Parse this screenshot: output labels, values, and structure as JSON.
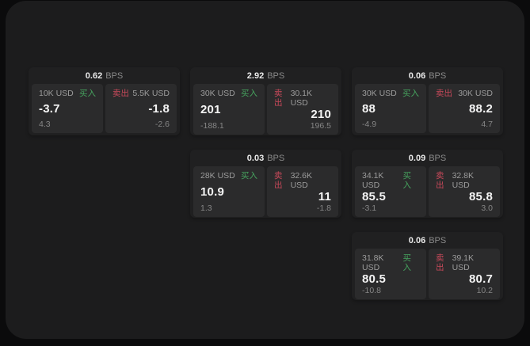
{
  "labels": {
    "buy": "买入",
    "sell": "卖出",
    "bps_unit": "BPS"
  },
  "colors": {
    "page_bg": "#0b0b0c",
    "surface_bg": "#1c1c1d",
    "card_bg": "#202021",
    "tile_bg": "#2b2b2c",
    "buy_green": "#46a35e",
    "sell_red": "#c8495a",
    "value_text": "#f4f4f4",
    "muted_text": "#9c9c9c"
  },
  "cards": [
    {
      "row": 1,
      "col": 1,
      "bps": "0.62",
      "buy": {
        "notional": "10K USD",
        "value": "-3.7",
        "sub": "4.3"
      },
      "sell": {
        "notional": "5.5K USD",
        "value": "-1.8",
        "sub": "-2.6"
      }
    },
    {
      "row": 1,
      "col": 2,
      "bps": "2.92",
      "buy": {
        "notional": "30K USD",
        "value": "201",
        "sub": "-188.1"
      },
      "sell": {
        "notional": "30.1K USD",
        "value": "210",
        "sub": "196.5"
      }
    },
    {
      "row": 1,
      "col": 3,
      "bps": "0.06",
      "buy": {
        "notional": "30K USD",
        "value": "88",
        "sub": "-4.9"
      },
      "sell": {
        "notional": "30K USD",
        "value": "88.2",
        "sub": "4.7"
      }
    },
    {
      "row": 2,
      "col": 2,
      "bps": "0.03",
      "buy": {
        "notional": "28K USD",
        "value": "10.9",
        "sub": "1.3"
      },
      "sell": {
        "notional": "32.6K USD",
        "value": "11",
        "sub": "-1.8"
      }
    },
    {
      "row": 2,
      "col": 3,
      "bps": "0.09",
      "buy": {
        "notional": "34.1K USD",
        "value": "85.5",
        "sub": "-3.1"
      },
      "sell": {
        "notional": "32.8K USD",
        "value": "85.8",
        "sub": "3.0"
      }
    },
    {
      "row": 3,
      "col": 3,
      "bps": "0.06",
      "buy": {
        "notional": "31.8K USD",
        "value": "80.5",
        "sub": "-10.8"
      },
      "sell": {
        "notional": "39.1K USD",
        "value": "80.7",
        "sub": "10.2"
      }
    }
  ]
}
